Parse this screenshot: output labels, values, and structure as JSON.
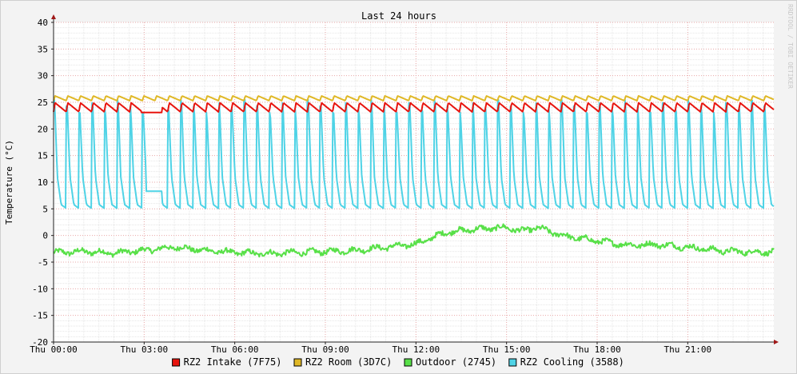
{
  "chart_data": {
    "type": "line",
    "title": "Last 24 hours",
    "ylabel": "Temperature (°C)",
    "watermark": "RRDTOOL / TOBI OETIKER",
    "ylim": [
      -20,
      40
    ],
    "yticks": [
      40,
      35,
      30,
      25,
      20,
      15,
      10,
      5,
      0,
      -5,
      -10,
      -15,
      -20
    ],
    "xlim_hours": [
      0,
      23.85
    ],
    "xtick_hours": [
      0,
      3,
      6,
      9,
      12,
      15,
      18,
      21
    ],
    "xtick_labels": [
      "Thu 00:00",
      "Thu 03:00",
      "Thu 06:00",
      "Thu 09:00",
      "Thu 12:00",
      "Thu 15:00",
      "Thu 18:00",
      "Thu 21:00"
    ],
    "grid": true,
    "legend_position": "bottom",
    "series": [
      {
        "name": "RZ2 Intake (7F75)",
        "color": "#e8140e",
        "pattern": "sawtooth",
        "low": 23.2,
        "high": 24.9,
        "period_hours": 0.42,
        "flat_segments": [
          [
            2.9,
            3.6,
            23.1
          ]
        ]
      },
      {
        "name": "RZ2 Room (3D7C)",
        "color": "#e0b826",
        "pattern": "sawtooth",
        "low": 25.3,
        "high": 26.2,
        "period_hours": 0.42,
        "flat_segments": []
      },
      {
        "name": "Outdoor (2745)",
        "color": "#58e048",
        "pattern": "noisy",
        "x": [
          0,
          1,
          2,
          3,
          4,
          4.5,
          5,
          6,
          7,
          8,
          9,
          10,
          11,
          12,
          12.5,
          13,
          14,
          15,
          15.5,
          16,
          16.5,
          17,
          18,
          19,
          20,
          21,
          22,
          23,
          23.8
        ],
        "y": [
          -3.2,
          -3,
          -3.3,
          -2.8,
          -2.2,
          -2.5,
          -2.8,
          -3.2,
          -3.4,
          -3.2,
          -3,
          -2.8,
          -2.2,
          -1.6,
          -0.5,
          0.6,
          1.2,
          1.5,
          0.8,
          1.5,
          0.6,
          -0.2,
          -1,
          -1.8,
          -1.7,
          -2.2,
          -2.8,
          -3.1,
          -3.1
        ]
      },
      {
        "name": "RZ2 Cooling (3588)",
        "color": "#4fd3e6",
        "pattern": "spikes",
        "base": 5.8,
        "peak": 25.5,
        "period_hours": 0.42,
        "flat_segments": [
          [
            3.05,
            3.6,
            8.3
          ]
        ]
      }
    ]
  }
}
